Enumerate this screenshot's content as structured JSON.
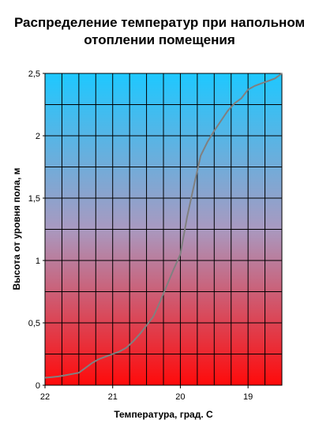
{
  "chart_data": {
    "type": "line",
    "title": "Распределение температур при напольном отоплении помещения",
    "xlabel": "Температура, град. С",
    "ylabel": "Высота от уровня пола, м",
    "xlim": [
      22,
      18.5
    ],
    "ylim": [
      0,
      2.5
    ],
    "x_reversed": true,
    "x_ticks": [
      "22",
      "21",
      "20",
      "19"
    ],
    "y_ticks": [
      "0",
      "0,5",
      "1",
      "1,5",
      "2",
      "2,5"
    ],
    "grid": true,
    "background": "vertical gradient cyan (top) to red (bottom)",
    "colors": {
      "line": "#808080",
      "grid": "#000000",
      "top": "#1ec8ff",
      "bottom": "#ff0a0a"
    },
    "series": [
      {
        "x": [
          22.0,
          21.9,
          21.8,
          21.7,
          21.6,
          21.5,
          21.4,
          21.3,
          21.2,
          21.1,
          21.0,
          20.9,
          20.8,
          20.7,
          20.6,
          20.5,
          20.4,
          20.3,
          20.2,
          20.1,
          20.0,
          19.9,
          19.8,
          19.7,
          19.6,
          19.5,
          19.4,
          19.3,
          19.2,
          19.1,
          19.0,
          18.9,
          18.8,
          18.7,
          18.6,
          18.5
        ],
        "y": [
          0.06,
          0.065,
          0.07,
          0.08,
          0.09,
          0.1,
          0.14,
          0.18,
          0.21,
          0.23,
          0.25,
          0.27,
          0.3,
          0.35,
          0.41,
          0.48,
          0.55,
          0.67,
          0.8,
          0.93,
          1.05,
          1.35,
          1.6,
          1.84,
          1.95,
          2.04,
          2.12,
          2.2,
          2.26,
          2.3,
          2.37,
          2.4,
          2.42,
          2.44,
          2.46,
          2.5
        ]
      }
    ]
  }
}
